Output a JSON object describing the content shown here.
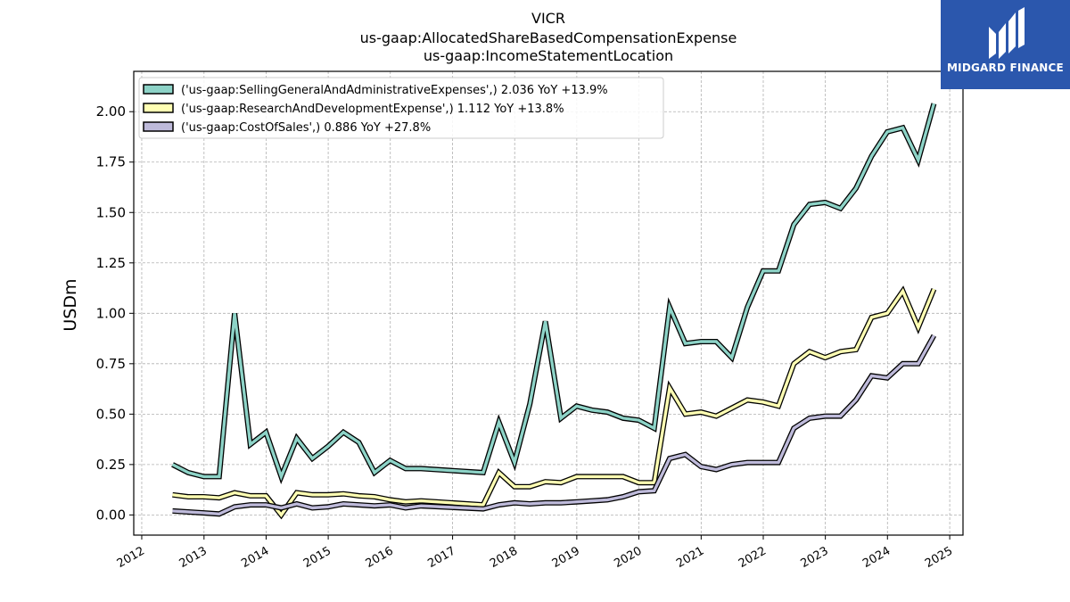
{
  "chart_data": {
    "type": "line",
    "title_lines": [
      "VICR",
      "us-gaap:AllocatedShareBasedCompensationExpense",
      "us-gaap:IncomeStatementLocation"
    ],
    "ylabel": "USDm",
    "xlabel": "",
    "ylim": [
      -0.1,
      2.2
    ],
    "xlim": [
      "2011-11-15",
      "2025-03-20"
    ],
    "grid": true,
    "legend_position": "top-left",
    "yticks": [
      0.0,
      0.25,
      0.5,
      0.75,
      1.0,
      1.25,
      1.5,
      1.75,
      2.0
    ],
    "ytick_labels": [
      "0.00",
      "0.25",
      "0.50",
      "0.75",
      "1.00",
      "1.25",
      "1.50",
      "1.75",
      "2.00"
    ],
    "xticks": [
      "2012-01-01",
      "2013-01-01",
      "2014-01-01",
      "2015-01-01",
      "2016-01-01",
      "2017-01-01",
      "2018-01-01",
      "2019-01-01",
      "2020-01-01",
      "2021-01-01",
      "2022-01-01",
      "2023-01-01",
      "2024-01-01",
      "2025-01-01"
    ],
    "xtick_labels": [
      "2012",
      "2013",
      "2014",
      "2015",
      "2016",
      "2017",
      "2018",
      "2019",
      "2020",
      "2021",
      "2022",
      "2023",
      "2024",
      "2025"
    ],
    "series": [
      {
        "name": "('us-gaap:SellingGeneralAndAdministrativeExpenses',) 2.036 YoY +13.9%",
        "color": "#8dd3c7",
        "x": [
          "2012-06-30",
          "2012-09-30",
          "2012-12-31",
          "2013-03-31",
          "2013-06-30",
          "2013-09-30",
          "2013-12-31",
          "2014-03-31",
          "2014-06-30",
          "2014-09-30",
          "2014-12-31",
          "2015-03-31",
          "2015-06-30",
          "2015-09-30",
          "2015-12-31",
          "2016-03-31",
          "2016-06-30",
          "2017-06-30",
          "2017-09-30",
          "2017-12-31",
          "2018-03-31",
          "2018-06-30",
          "2018-09-30",
          "2018-12-31",
          "2019-03-31",
          "2019-06-30",
          "2019-09-30",
          "2019-12-31",
          "2020-03-31",
          "2020-06-30",
          "2020-09-30",
          "2020-12-31",
          "2021-03-31",
          "2021-06-30",
          "2021-09-30",
          "2021-12-31",
          "2022-03-31",
          "2022-06-30",
          "2022-09-30",
          "2022-12-31",
          "2023-03-31",
          "2023-06-30",
          "2023-09-30",
          "2023-12-31",
          "2024-03-31",
          "2024-06-30",
          "2024-09-30"
        ],
        "y": [
          0.25,
          0.21,
          0.19,
          0.19,
          1.0,
          0.35,
          0.41,
          0.19,
          0.38,
          0.28,
          0.34,
          0.41,
          0.36,
          0.21,
          0.27,
          0.23,
          0.23,
          0.21,
          0.46,
          0.26,
          0.55,
          0.96,
          0.48,
          0.54,
          0.52,
          0.51,
          0.48,
          0.47,
          0.43,
          1.03,
          0.85,
          0.86,
          0.86,
          0.78,
          1.03,
          1.21,
          1.21,
          1.44,
          1.54,
          1.55,
          1.52,
          1.62,
          1.78,
          1.9,
          1.92,
          1.76,
          2.04
        ]
      },
      {
        "name": "('us-gaap:ResearchAndDevelopmentExpense',) 1.112 YoY +13.8%",
        "color": "#ffffb3",
        "x": [
          "2012-06-30",
          "2012-09-30",
          "2012-12-31",
          "2013-03-31",
          "2013-06-30",
          "2013-09-30",
          "2013-12-31",
          "2014-03-31",
          "2014-06-30",
          "2014-09-30",
          "2014-12-31",
          "2015-03-31",
          "2015-06-30",
          "2015-09-30",
          "2015-12-31",
          "2016-03-31",
          "2016-06-30",
          "2017-06-30",
          "2017-09-30",
          "2017-12-31",
          "2018-03-31",
          "2018-06-30",
          "2018-09-30",
          "2018-12-31",
          "2019-03-31",
          "2019-06-30",
          "2019-09-30",
          "2019-12-31",
          "2020-03-31",
          "2020-06-30",
          "2020-09-30",
          "2020-12-31",
          "2021-03-31",
          "2021-06-30",
          "2021-09-30",
          "2021-12-31",
          "2022-03-31",
          "2022-06-30",
          "2022-09-30",
          "2022-12-31",
          "2023-03-31",
          "2023-06-30",
          "2023-09-30",
          "2023-12-31",
          "2024-03-31",
          "2024-06-30",
          "2024-09-30"
        ],
        "y": [
          0.1,
          0.09,
          0.09,
          0.085,
          0.11,
          0.095,
          0.095,
          0.0,
          0.11,
          0.1,
          0.1,
          0.105,
          0.095,
          0.09,
          0.075,
          0.065,
          0.07,
          0.05,
          0.21,
          0.14,
          0.14,
          0.165,
          0.16,
          0.19,
          0.19,
          0.19,
          0.19,
          0.16,
          0.16,
          0.63,
          0.5,
          0.51,
          0.49,
          0.53,
          0.57,
          0.56,
          0.54,
          0.75,
          0.81,
          0.78,
          0.81,
          0.82,
          0.98,
          1.0,
          1.11,
          0.93,
          1.12
        ]
      },
      {
        "name": "('us-gaap:CostOfSales',) 0.886 YoY +27.8%",
        "color": "#bebada",
        "x": [
          "2012-06-30",
          "2012-09-30",
          "2012-12-31",
          "2013-03-31",
          "2013-06-30",
          "2013-09-30",
          "2013-12-31",
          "2014-03-31",
          "2014-06-30",
          "2014-09-30",
          "2014-12-31",
          "2015-03-31",
          "2015-06-30",
          "2015-09-30",
          "2015-12-31",
          "2016-03-31",
          "2016-06-30",
          "2017-06-30",
          "2017-09-30",
          "2017-12-31",
          "2018-03-31",
          "2018-06-30",
          "2018-09-30",
          "2018-12-31",
          "2019-03-31",
          "2019-06-30",
          "2019-09-30",
          "2019-12-31",
          "2020-03-31",
          "2020-06-30",
          "2020-09-30",
          "2020-12-31",
          "2021-03-31",
          "2021-06-30",
          "2021-09-30",
          "2021-12-31",
          "2022-03-31",
          "2022-06-30",
          "2022-09-30",
          "2022-12-31",
          "2023-03-31",
          "2023-06-30",
          "2023-09-30",
          "2023-12-31",
          "2024-03-31",
          "2024-06-30",
          "2024-09-30"
        ],
        "y": [
          0.02,
          0.015,
          0.01,
          0.005,
          0.04,
          0.05,
          0.05,
          0.035,
          0.055,
          0.035,
          0.04,
          0.055,
          0.05,
          0.045,
          0.05,
          0.035,
          0.045,
          0.03,
          0.05,
          0.06,
          0.055,
          0.06,
          0.06,
          0.065,
          0.07,
          0.075,
          0.09,
          0.115,
          0.12,
          0.28,
          0.3,
          0.24,
          0.225,
          0.25,
          0.26,
          0.26,
          0.26,
          0.43,
          0.48,
          0.49,
          0.49,
          0.57,
          0.69,
          0.68,
          0.75,
          0.75,
          0.89
        ]
      }
    ]
  },
  "logo": {
    "text": "MIDGARD FINANCE",
    "icon": "midgard-logo-icon",
    "background": "#2b57ad"
  }
}
